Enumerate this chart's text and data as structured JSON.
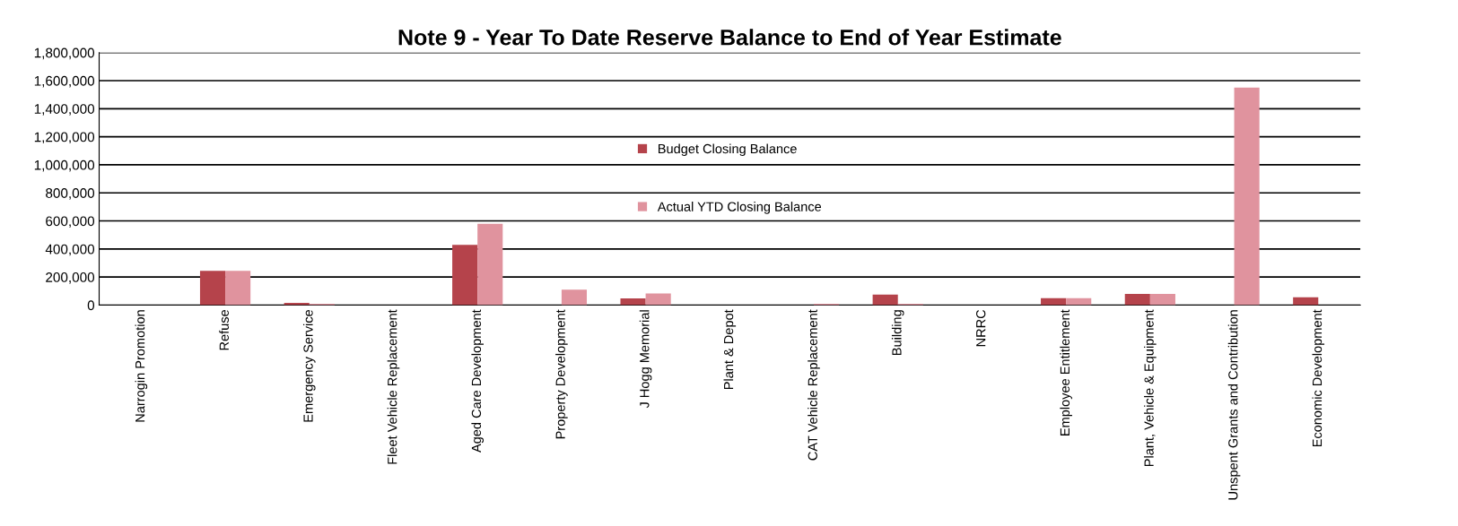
{
  "chart_data": {
    "type": "bar",
    "title": "Note 9 - Year To Date Reserve Balance to End of Year Estimate",
    "categories": [
      "Narrogin Promotion",
      "Refuse",
      "Emergency Service",
      "Fleet Vehicle Replacement",
      "Aged Care Development",
      "Property Development",
      "J Hogg Memorial",
      "Plant & Depot",
      "CAT Vehicle Replacement",
      "Building",
      "NRRC",
      "Employee Entitlement",
      "Plant, Vehicle & Equipment",
      "Unspent Grants and Contribution",
      "Economic Development"
    ],
    "series": [
      {
        "name": "Budget Closing Balance",
        "color": "#b5434b",
        "values": [
          0,
          244000,
          15000,
          0,
          430000,
          0,
          48000,
          0,
          0,
          75000,
          0,
          50000,
          80000,
          0,
          55000
        ]
      },
      {
        "name": "Actual YTD Closing Balance",
        "color": "#e0939e",
        "values": [
          0,
          244000,
          10000,
          0,
          580000,
          110000,
          83000,
          0,
          10000,
          10000,
          0,
          50000,
          80000,
          1550000,
          0
        ]
      }
    ],
    "ylim": [
      0,
      1800000
    ],
    "yticks": [
      {
        "value": 0,
        "label": "0"
      },
      {
        "value": 200000,
        "label": "200,000"
      },
      {
        "value": 400000,
        "label": "400,000"
      },
      {
        "value": 600000,
        "label": "600,000"
      },
      {
        "value": 800000,
        "label": "800,000"
      },
      {
        "value": 1000000,
        "label": "1,000,000"
      },
      {
        "value": 1200000,
        "label": "1,200,000"
      },
      {
        "value": 1400000,
        "label": "1,400,000"
      },
      {
        "value": 1600000,
        "label": "1,600,000"
      },
      {
        "value": 1800000,
        "label": "1,800,000"
      }
    ],
    "grid": "y",
    "legend": "center"
  }
}
